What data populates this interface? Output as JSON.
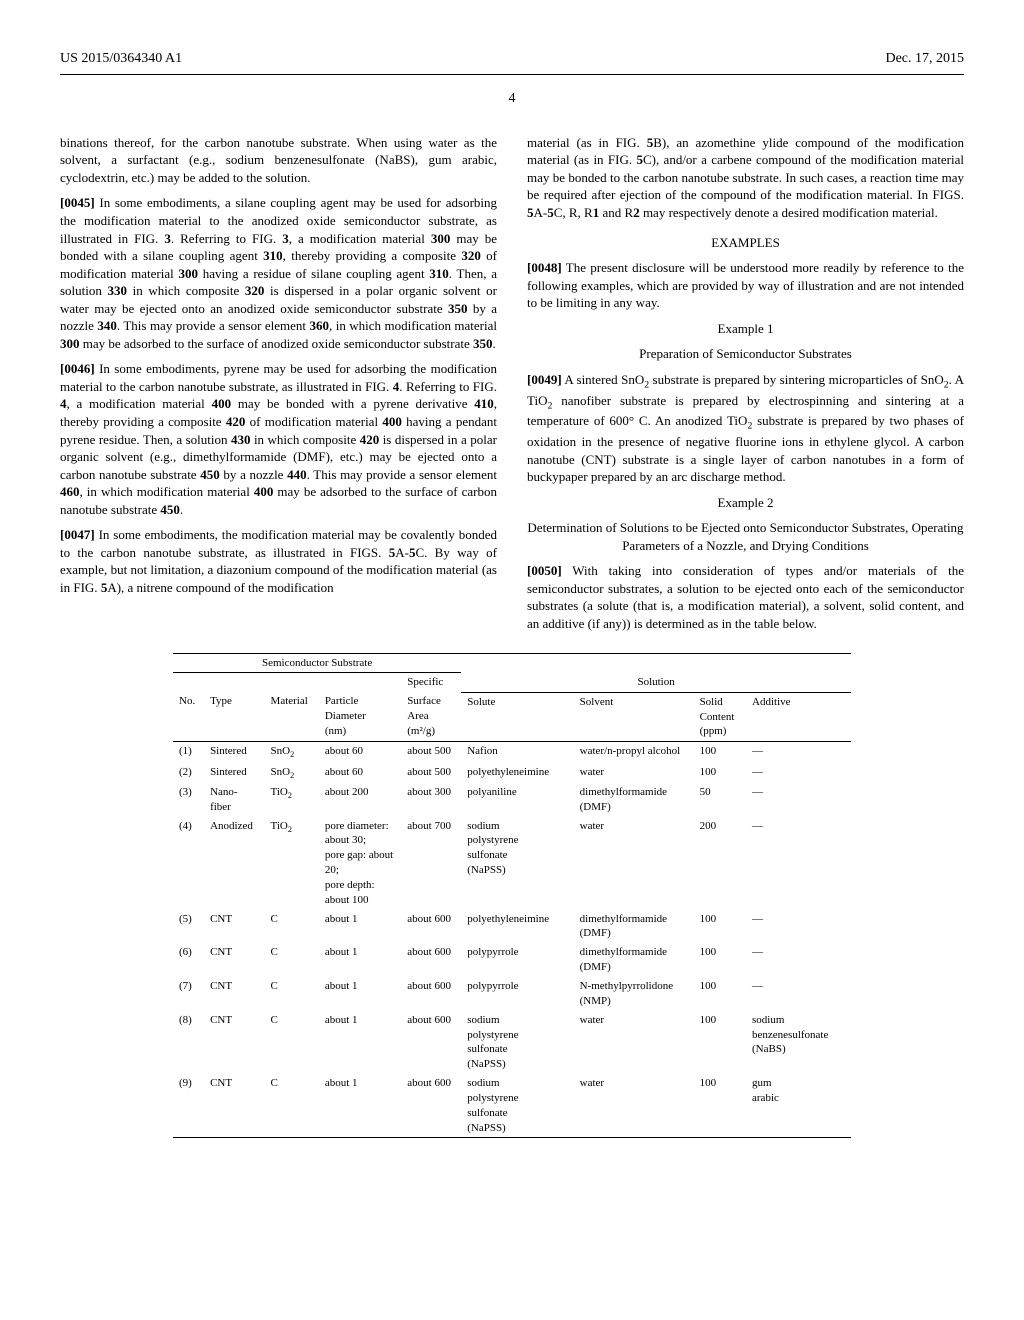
{
  "header": {
    "pub_number": "US 2015/0364340 A1",
    "pub_date": "Dec. 17, 2015"
  },
  "page_number": "4",
  "left_col": {
    "p1": "binations thereof, for the carbon nanotube substrate. When using water as the solvent, a surfactant (e.g., sodium benzenesulfonate (NaBS), gum arabic, cyclodextrin, etc.) may be added to the solution.",
    "p2_num": "[0045]",
    "p2": "In some embodiments, a silane coupling agent may be used for adsorbing the modification material to the anodized oxide semiconductor substrate, as illustrated in FIG. 3. Referring to FIG. 3, a modification material 300 may be bonded with a silane coupling agent 310, thereby providing a composite 320 of modification material 300 having a residue of silane coupling agent 310. Then, a solution 330 in which composite 320 is dispersed in a polar organic solvent or water may be ejected onto an anodized oxide semiconductor substrate 350 by a nozzle 340. This may provide a sensor element 360, in which modification material 300 may be adsorbed to the surface of anodized oxide semiconductor substrate 350.",
    "p3_num": "[0046]",
    "p3": "In some embodiments, pyrene may be used for adsorbing the modification material to the carbon nanotube substrate, as illustrated in FIG. 4. Referring to FIG. 4, a modification material 400 may be bonded with a pyrene derivative 410, thereby providing a composite 420 of modification material 400 having a pendant pyrene residue. Then, a solution 430 in which composite 420 is dispersed in a polar organic solvent (e.g., dimethylformamide (DMF), etc.) may be ejected onto a carbon nanotube substrate 450 by a nozzle 440. This may provide a sensor element 460, in which modification material 400 may be adsorbed to the surface of carbon nanotube substrate 450.",
    "p4_num": "[0047]",
    "p4": "In some embodiments, the modification material may be covalently bonded to the carbon nanotube substrate, as illustrated in FIGS. 5A-5C. By way of example, but not limitation, a diazonium compound of the modification material (as in FIG. 5A), a nitrene compound of the modification"
  },
  "right_col": {
    "p1": "material (as in FIG. 5B), an azomethine ylide compound of the modification material (as in FIG. 5C), and/or a carbene compound of the modification material may be bonded to the carbon nanotube substrate. In such cases, a reaction time may be required after ejection of the compound of the modification material. In FIGS. 5A-5C, R, R1 and R2 may respectively denote a desired modification material.",
    "examples_head": "EXAMPLES",
    "p2_num": "[0048]",
    "p2": "The present disclosure will be understood more readily by reference to the following examples, which are provided by way of illustration and are not intended to be limiting in any way.",
    "ex1_head": "Example 1",
    "ex1_sub": "Preparation of Semiconductor Substrates",
    "p3_num": "[0049]",
    "p3": "A sintered SnO₂ substrate is prepared by sintering microparticles of SnO₂. A TiO₂ nanofiber substrate is prepared by electrospinning and sintering at a temperature of 600° C. An anodized TiO₂ substrate is prepared by two phases of oxidation in the presence of negative fluorine ions in ethylene glycol. A carbon nanotube (CNT) substrate is a single layer of carbon nanotubes in a form of buckypaper prepared by an arc discharge method.",
    "ex2_head": "Example 2",
    "ex2_sub": "Determination of Solutions to be Ejected onto Semiconductor Substrates, Operating Parameters of a Nozzle, and Drying Conditions",
    "p4_num": "[0050]",
    "p4": "With taking into consideration of types and/or materials of the semiconductor substrates, a solution to be ejected onto each of the semiconductor substrates (a solute (that is, a modification material), a solvent, solid content, and an additive (if any)) is determined as in the table below."
  },
  "table": {
    "group_head_1": "Semiconductor Substrate",
    "group_head_2": "Solution",
    "head": {
      "no": "No.",
      "type": "Type",
      "material": "Material",
      "diameter": "Particle Diameter (nm)",
      "area": "Specific Surface Area (m²/g)",
      "solute": "Solute",
      "solvent": "Solvent",
      "solid": "Solid Content (ppm)",
      "additive": "Additive"
    },
    "rows": [
      {
        "no": "(1)",
        "type": "Sintered",
        "material": "SnO₂",
        "diam": "about 60",
        "area": "about 500",
        "solute": "Nafion",
        "solvent": "water/n-propyl alcohol",
        "solid": "100",
        "add": "—"
      },
      {
        "no": "(2)",
        "type": "Sintered",
        "material": "SnO₂",
        "diam": "about 60",
        "area": "about 500",
        "solute": "polyethyleneimine",
        "solvent": "water",
        "solid": "100",
        "add": "—"
      },
      {
        "no": "(3)",
        "type": "Nano-fiber",
        "material": "TiO₂",
        "diam": "about 200",
        "area": "about 300",
        "solute": "polyaniline",
        "solvent": "dimethylformamide (DMF)",
        "solid": "50",
        "add": "—"
      },
      {
        "no": "(4)",
        "type": "Anodized",
        "material": "TiO₂",
        "diam": "pore diameter: about 30; pore gap: about 20; pore depth: about 100",
        "area": "about 700",
        "solute": "sodium polystyrene sulfonate (NaPSS)",
        "solvent": "water",
        "solid": "200",
        "add": "—"
      },
      {
        "no": "(5)",
        "type": "CNT",
        "material": "C",
        "diam": "about 1",
        "area": "about 600",
        "solute": "polyethyleneimine",
        "solvent": "dimethylformamide (DMF)",
        "solid": "100",
        "add": "—"
      },
      {
        "no": "(6)",
        "type": "CNT",
        "material": "C",
        "diam": "about 1",
        "area": "about 600",
        "solute": "polypyrrole",
        "solvent": "dimethylformamide (DMF)",
        "solid": "100",
        "add": "—"
      },
      {
        "no": "(7)",
        "type": "CNT",
        "material": "C",
        "diam": "about 1",
        "area": "about 600",
        "solute": "polypyrrole",
        "solvent": "N-methylpyrrolidone (NMP)",
        "solid": "100",
        "add": "—"
      },
      {
        "no": "(8)",
        "type": "CNT",
        "material": "C",
        "diam": "about 1",
        "area": "about 600",
        "solute": "sodium polystyrene sulfonate (NaPSS)",
        "solvent": "water",
        "solid": "100",
        "add": "sodium benzenesulfonate (NaBS)"
      },
      {
        "no": "(9)",
        "type": "CNT",
        "material": "C",
        "diam": "about 1",
        "area": "about 600",
        "solute": "sodium polystyrene sulfonate (NaPSS)",
        "solvent": "water",
        "solid": "100",
        "add": "gum arabic"
      }
    ],
    "col_widths": {
      "no": "4%",
      "type": "8%",
      "material": "7%",
      "diam": "11%",
      "area": "8%",
      "solute": "15%",
      "solvent": "16%",
      "solid": "7%",
      "add": "14%"
    }
  }
}
